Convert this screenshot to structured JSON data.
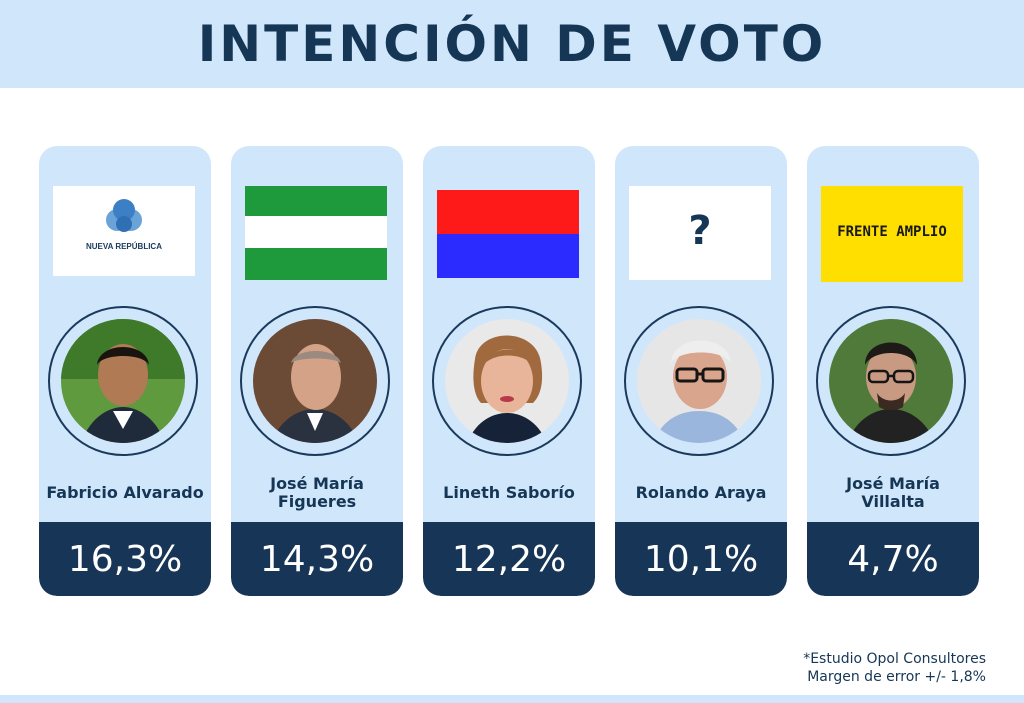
{
  "title": "INTENCIÓN DE VOTO",
  "chart_data": {
    "type": "bar",
    "title": "INTENCIÓN DE VOTO",
    "categories": [
      "Fabricio Alvarado",
      "José María Figueres",
      "Lineth Saborío",
      "Rolando Araya",
      "José María Villalta"
    ],
    "series": [
      {
        "values": [
          16.3,
          14.3,
          12.2,
          10.1,
          4.7
        ]
      }
    ],
    "value_labels": [
      "16,3%",
      "14,3%",
      "12,2%",
      "10,1%",
      "4,7%"
    ],
    "unit": "%"
  },
  "candidates": [
    {
      "name_lines": [
        "Fabricio Alvarado"
      ],
      "value": "16,3%",
      "logo": {
        "kind": "nueva-republica",
        "text": "NUEVA REPÚBLICA"
      }
    },
    {
      "name_lines": [
        "José María",
        "Figueres"
      ],
      "value": "14,3%",
      "logo": {
        "kind": "flag-green-white-green",
        "colors": [
          "#1e9a3c",
          "#ffffff",
          "#1e9a3c"
        ]
      }
    },
    {
      "name_lines": [
        "Lineth Saborío"
      ],
      "value": "12,2%",
      "logo": {
        "kind": "flag-red-blue",
        "colors": [
          "#ff1a1a",
          "#2b2bff"
        ]
      }
    },
    {
      "name_lines": [
        "Rolando Araya"
      ],
      "value": "10,1%",
      "logo": {
        "kind": "question",
        "text": "?"
      }
    },
    {
      "name_lines": [
        "José María",
        "Villalta"
      ],
      "value": "4,7%",
      "logo": {
        "kind": "frente-amplio",
        "text": "FRENTE AMPLIO",
        "color": "#ffdf00"
      }
    }
  ],
  "footnote": {
    "line1": "*Estudio Opol Consultores",
    "line2": "Margen de error +/- 1,8%"
  },
  "colors": {
    "navy": "#173556",
    "light_blue": "#cfe6fb",
    "text": "#163656"
  }
}
